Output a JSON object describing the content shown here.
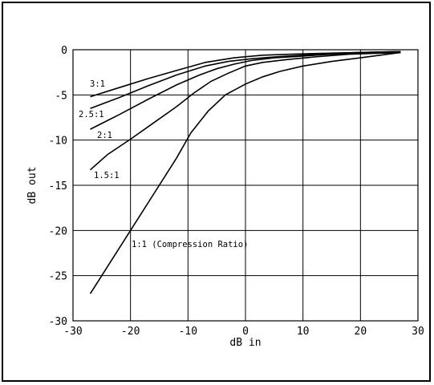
{
  "chart_data": {
    "type": "line",
    "title": "",
    "xlabel": "dB in",
    "ylabel": "dB out",
    "xlim": [
      -30,
      30
    ],
    "ylim": [
      -30,
      0
    ],
    "grid": true,
    "x_ticks": [
      -30,
      -20,
      -10,
      0,
      10,
      20,
      30
    ],
    "y_ticks": [
      0,
      -5,
      -10,
      -15,
      -20,
      -25,
      -30
    ],
    "series": [
      {
        "name": "1:1 (Compression Ratio)",
        "x": [
          -27,
          -22,
          -17,
          -12,
          -9.5,
          -6.5,
          -3.5,
          0,
          3,
          6,
          10,
          15,
          20,
          27
        ],
        "y": [
          -27,
          -22,
          -17,
          -12,
          -9.2,
          -6.8,
          -5.0,
          -3.8,
          -3.0,
          -2.4,
          -1.8,
          -1.3,
          -0.9,
          -0.3
        ]
      },
      {
        "name": "1.5:1",
        "x": [
          -27,
          -24,
          -20,
          -16,
          -12,
          -9,
          -6,
          -3,
          0,
          3,
          7,
          12,
          18,
          27
        ],
        "y": [
          -13.3,
          -11.6,
          -9.9,
          -8.1,
          -6.3,
          -4.8,
          -3.5,
          -2.6,
          -1.8,
          -1.4,
          -1.1,
          -0.8,
          -0.5,
          -0.3
        ]
      },
      {
        "name": "2:1",
        "x": [
          -27,
          -22,
          -17,
          -12,
          -8,
          -5,
          -2,
          1,
          5,
          10,
          15,
          20,
          27
        ],
        "y": [
          -8.8,
          -7.2,
          -5.5,
          -3.9,
          -2.8,
          -2.1,
          -1.6,
          -1.2,
          -0.9,
          -0.7,
          -0.5,
          -0.4,
          -0.3
        ]
      },
      {
        "name": "2.5:1",
        "x": [
          -27,
          -22,
          -17,
          -12,
          -7,
          -3,
          1,
          5,
          10,
          15,
          20,
          27
        ],
        "y": [
          -6.5,
          -5.3,
          -4.0,
          -2.8,
          -1.8,
          -1.3,
          -1.0,
          -0.8,
          -0.6,
          -0.4,
          -0.3,
          -0.2
        ]
      },
      {
        "name": "3:1",
        "x": [
          -27,
          -22,
          -17,
          -12,
          -7,
          -2,
          3,
          8,
          13,
          20,
          27
        ],
        "y": [
          -5.2,
          -4.2,
          -3.2,
          -2.3,
          -1.4,
          -0.9,
          -0.6,
          -0.5,
          -0.4,
          -0.3,
          -0.2
        ]
      }
    ]
  }
}
